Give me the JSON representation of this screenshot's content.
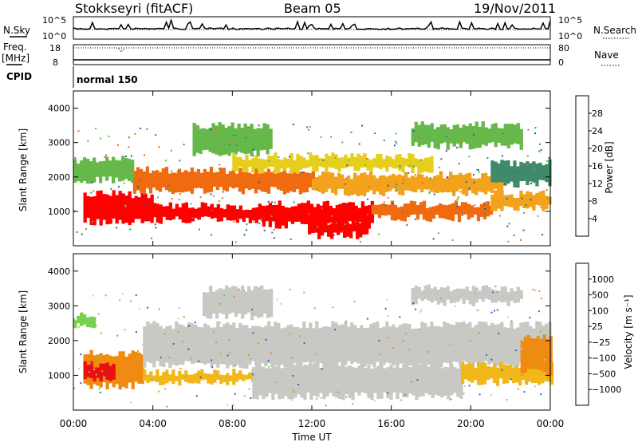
{
  "header": {
    "station": "Stokkseyri (fitACF)",
    "beam": "Beam 05",
    "date": "19/Nov/2011"
  },
  "top_panel": {
    "left_label_1": "N.Sky",
    "left_label_2": "Freq.",
    "left_label_3": "[MHz]",
    "left_label_4": "CPID",
    "right_label_1": "N.Search",
    "right_label_2": "Nave",
    "sky_ticks": [
      "10^5",
      "10^0"
    ],
    "search_ticks": [
      "10^5",
      "10^0"
    ],
    "freq_ticks": [
      "18",
      "8"
    ],
    "nave_ticks": [
      "80",
      "0"
    ],
    "cpid_text": "normal 150"
  },
  "chart_data": [
    {
      "type": "heatmap",
      "quantity": "Power",
      "ylabel": "Slant Range [km]",
      "colorbar_label": "Power [dB]",
      "xlim": [
        "00:00",
        "00:00"
      ],
      "ylim": [
        0,
        4500
      ],
      "y_ticks": [
        1000,
        2000,
        3000,
        4000
      ],
      "colorbar_ticks": [
        4,
        8,
        12,
        16,
        20,
        24,
        28
      ],
      "colorbar_colors": [
        "#1f3fe0",
        "#2a5aa8",
        "#3f8a6a",
        "#66b84a",
        "#e6cf1c",
        "#f2a21b",
        "#f06a10",
        "#ff0000"
      ],
      "bands": [
        {
          "t0": 0.5,
          "t1": 4.0,
          "r0": 700,
          "r1": 1500,
          "level": 28
        },
        {
          "t0": 4.0,
          "t1": 9.5,
          "r0": 750,
          "r1": 1150,
          "level": 28
        },
        {
          "t0": 9.5,
          "t1": 15.0,
          "r0": 600,
          "r1": 1200,
          "level": 28
        },
        {
          "t0": 11.8,
          "t1": 14.8,
          "r0": 300,
          "r1": 700,
          "level": 28
        },
        {
          "t0": 15.0,
          "t1": 21.0,
          "r0": 800,
          "r1": 1200,
          "level": 26
        },
        {
          "t0": 21.0,
          "t1": 24.0,
          "r0": 1100,
          "r1": 1500,
          "level": 22
        },
        {
          "t0": 3.0,
          "t1": 12.0,
          "r0": 1600,
          "r1": 2200,
          "level": 24
        },
        {
          "t0": 12.0,
          "t1": 21.5,
          "r0": 1550,
          "r1": 2050,
          "level": 22
        },
        {
          "t0": 0.0,
          "t1": 3.0,
          "r0": 1900,
          "r1": 2500,
          "level": 14
        },
        {
          "t0": 6.0,
          "t1": 10.0,
          "r0": 2700,
          "r1": 3500,
          "level": 14
        },
        {
          "t0": 17.0,
          "t1": 22.5,
          "r0": 2900,
          "r1": 3500,
          "level": 12
        },
        {
          "t0": 8.0,
          "t1": 18.0,
          "r0": 2200,
          "r1": 2600,
          "level": 16
        },
        {
          "t0": 21.0,
          "t1": 24.0,
          "r0": 1800,
          "r1": 2400,
          "level": 10
        }
      ]
    },
    {
      "type": "heatmap",
      "quantity": "Velocity",
      "ylabel": "Slant Range [km]",
      "colorbar_label": "Velocity [m s⁻¹]",
      "xlabel": "Time UT",
      "x_ticks": [
        "00:00",
        "04:00",
        "08:00",
        "12:00",
        "16:00",
        "20:00",
        "00:00"
      ],
      "ylim": [
        0,
        4500
      ],
      "y_ticks": [
        1000,
        2000,
        3000,
        4000
      ],
      "colorbar_ticks": [
        "1000",
        "500",
        "100",
        "25",
        "−25",
        "−100",
        "−500",
        "−1000"
      ],
      "colorbar_colors": [
        "#1a2fb8",
        "#2e66b0",
        "#3f8a5a",
        "#7ad04e",
        "#c8c8c4",
        "#f2b81b",
        "#f08a10",
        "#f05010",
        "#e81010"
      ],
      "bands": [
        {
          "t0": 0.5,
          "t1": 3.5,
          "r0": 700,
          "r1": 1650,
          "color": "#f08a10"
        },
        {
          "t0": 0.5,
          "t1": 2.0,
          "r0": 900,
          "r1": 1300,
          "color": "#e81010"
        },
        {
          "t0": 3.5,
          "t1": 9.0,
          "r0": 800,
          "r1": 1100,
          "color": "#f2b81b"
        },
        {
          "t0": 9.0,
          "t1": 19.5,
          "r0": 400,
          "r1": 1300,
          "color": "#c8c8c4"
        },
        {
          "t0": 3.5,
          "t1": 24.0,
          "r0": 1300,
          "r1": 2450,
          "color": "#c8c8c4"
        },
        {
          "t0": 19.5,
          "t1": 24.0,
          "r0": 800,
          "r1": 1300,
          "color": "#f2b81b"
        },
        {
          "t0": 22.5,
          "t1": 24.0,
          "r0": 1100,
          "r1": 2100,
          "color": "#f08a10"
        },
        {
          "t0": 6.5,
          "t1": 10.0,
          "r0": 2700,
          "r1": 3500,
          "color": "#c8c8c4"
        },
        {
          "t0": 17.0,
          "t1": 22.5,
          "r0": 3100,
          "r1": 3500,
          "color": "#c8c8c4"
        },
        {
          "t0": 0.0,
          "t1": 1.0,
          "r0": 2400,
          "r1": 2700,
          "color": "#7ad04e"
        }
      ]
    }
  ]
}
